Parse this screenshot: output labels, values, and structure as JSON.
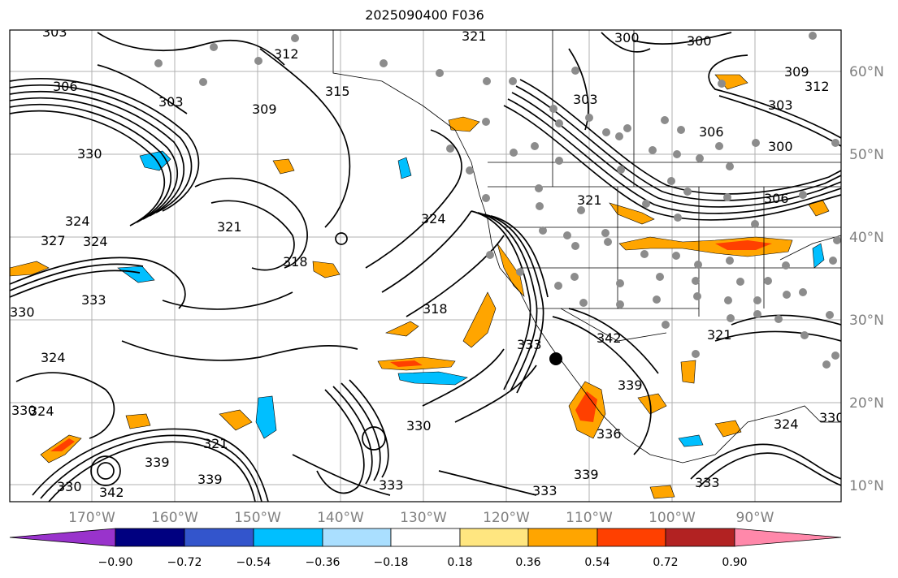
{
  "title": "2025090400 F036",
  "lat_labels": [
    "10°N",
    "20°N",
    "30°N",
    "40°N",
    "50°N",
    "60°N"
  ],
  "lon_labels": [
    "170°W",
    "160°W",
    "150°W",
    "140°W",
    "130°W",
    "120°W",
    "110°W",
    "100°W",
    "90°W"
  ],
  "colorbar": {
    "ticks": [
      "−0.90",
      "−0.72",
      "−0.54",
      "−0.36",
      "−0.18",
      "0.18",
      "0.36",
      "0.54",
      "0.72",
      "0.90"
    ],
    "colors": [
      "#9933cc",
      "#000080",
      "#3355cc",
      "#00bfff",
      "#aadfff",
      "#ffffff",
      "#ffe680",
      "#ffa500",
      "#ff4000",
      "#b22222",
      "#ff88aa"
    ]
  },
  "contour_labels": [
    "303",
    "306",
    "303",
    "330",
    "327",
    "324",
    "330",
    "333",
    "324",
    "330",
    "324",
    "312",
    "315",
    "309",
    "321",
    "318",
    "321",
    "300",
    "300",
    "303",
    "309",
    "312",
    "303",
    "300",
    "306",
    "306",
    "321",
    "324",
    "318",
    "333",
    "342",
    "339",
    "336",
    "333",
    "339",
    "333",
    "330",
    "321",
    "339",
    "339",
    "342",
    "330",
    "333",
    "321",
    "324",
    "330",
    "324"
  ],
  "colors": {
    "contour": "#000000",
    "grid": "#b0b0b0",
    "dot": "#8c8c8c"
  }
}
